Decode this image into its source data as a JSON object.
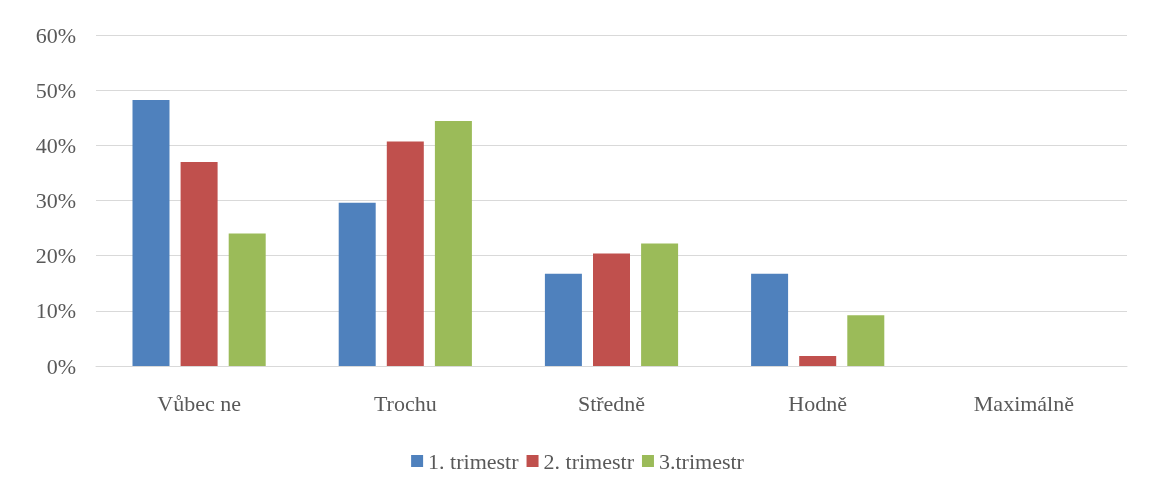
{
  "chart_data": {
    "type": "bar",
    "categories": [
      "Vůbec ne",
      "Trochu",
      "Středně",
      "Hodně",
      "Maximálně"
    ],
    "series": [
      {
        "name": "1. trimestr",
        "color": "#4f81bd",
        "values": [
          48.2,
          29.6,
          16.7,
          16.7,
          0
        ]
      },
      {
        "name": "2. trimestr",
        "color": "#c0504d",
        "values": [
          37.0,
          40.7,
          20.4,
          1.8,
          0
        ]
      },
      {
        "name": "3.trimestr",
        "color": "#9bbb59",
        "values": [
          24.0,
          44.4,
          22.2,
          9.2,
          0
        ]
      }
    ],
    "ylim": [
      0,
      60
    ],
    "yticks": [
      {
        "value": 0,
        "label": "0%"
      },
      {
        "value": 10,
        "label": "10%"
      },
      {
        "value": 20,
        "label": "20%"
      },
      {
        "value": 30,
        "label": "30%"
      },
      {
        "value": 40,
        "label": "40%"
      },
      {
        "value": 50,
        "label": "50%"
      },
      {
        "value": 60,
        "label": "60%"
      }
    ],
    "grid": "y",
    "legend": "bottom"
  }
}
